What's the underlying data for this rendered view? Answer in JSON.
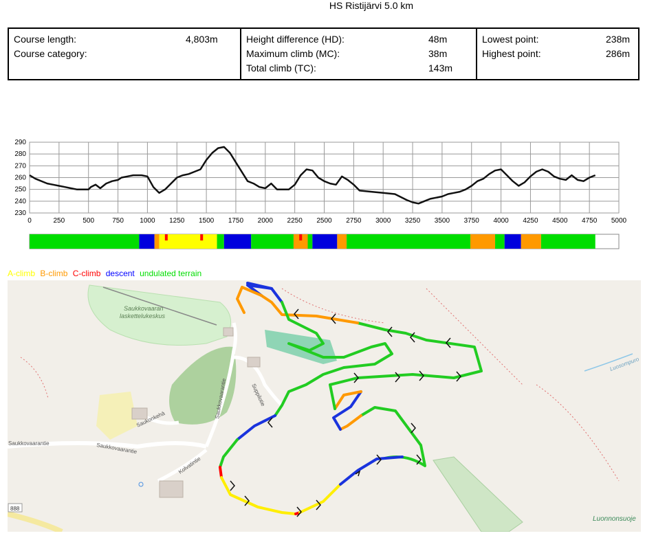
{
  "title": "HS Ristijärvi 5.0 km",
  "stats": {
    "col1": [
      {
        "label": "Course length:",
        "value": "4,803m"
      },
      {
        "label": "Course category:",
        "value": ""
      }
    ],
    "col2": [
      {
        "label": "Height difference (HD):",
        "value": "48m"
      },
      {
        "label": "Maximum climb (MC):",
        "value": "38m"
      },
      {
        "label": "Total climb (TC):",
        "value": "143m"
      }
    ],
    "col3": [
      {
        "label": "Lowest point:",
        "value": "238m"
      },
      {
        "label": "Highest point:",
        "value": "286m"
      }
    ]
  },
  "chart_data": {
    "type": "line",
    "title": "",
    "xlabel": "",
    "ylabel": "",
    "xlim": [
      0,
      5000
    ],
    "ylim": [
      230,
      290
    ],
    "xticks": [
      0,
      250,
      500,
      750,
      1000,
      1250,
      1500,
      1750,
      2000,
      2250,
      2500,
      2750,
      3000,
      3250,
      3500,
      3750,
      4000,
      4250,
      4500,
      4750,
      5000
    ],
    "yticks": [
      230,
      240,
      250,
      260,
      270,
      280,
      290
    ],
    "grid": true,
    "series": [
      {
        "name": "",
        "x": [
          0,
          50,
          150,
          200,
          250,
          300,
          350,
          400,
          500,
          520,
          560,
          600,
          650,
          700,
          750,
          780,
          830,
          880,
          950,
          1000,
          1050,
          1100,
          1150,
          1200,
          1250,
          1300,
          1350,
          1400,
          1450,
          1500,
          1550,
          1600,
          1650,
          1700,
          1750,
          1800,
          1850,
          1900,
          1950,
          2000,
          2050,
          2100,
          2150,
          2200,
          2250,
          2300,
          2350,
          2400,
          2450,
          2500,
          2550,
          2600,
          2650,
          2700,
          2750,
          2800,
          2900,
          3000,
          3100,
          3200,
          3250,
          3300,
          3350,
          3400,
          3450,
          3500,
          3550,
          3600,
          3650,
          3700,
          3750,
          3800,
          3850,
          3900,
          3950,
          4000,
          4050,
          4100,
          4150,
          4200,
          4250,
          4300,
          4350,
          4400,
          4450,
          4500,
          4550,
          4600,
          4650,
          4700,
          4750,
          4800
        ],
        "y": [
          262,
          259,
          255,
          254,
          253,
          252,
          251,
          250,
          250,
          252,
          254,
          251,
          255,
          257,
          258,
          260,
          261,
          262,
          262,
          261,
          252,
          247,
          250,
          255,
          260,
          262,
          263,
          265,
          267,
          275,
          281,
          285,
          286,
          281,
          273,
          265,
          257,
          255,
          252,
          251,
          255,
          250,
          250,
          250,
          254,
          262,
          267,
          266,
          260,
          257,
          255,
          254,
          261,
          258,
          254,
          249,
          248,
          247,
          246,
          241,
          239,
          238,
          240,
          242,
          243,
          244,
          246,
          247,
          248,
          250,
          253,
          257,
          259,
          263,
          266,
          267,
          262,
          257,
          253,
          256,
          261,
          265,
          267,
          265,
          261,
          259,
          258,
          262,
          258,
          257,
          260,
          262
        ]
      }
    ],
    "terrain_bar": [
      {
        "from": 0,
        "to": 930,
        "type": "undulated terrain"
      },
      {
        "from": 930,
        "to": 1060,
        "type": "descent"
      },
      {
        "from": 1060,
        "to": 1100,
        "type": "B-climb"
      },
      {
        "from": 1100,
        "to": 1590,
        "type": "A-climb"
      },
      {
        "from": 1590,
        "to": 1650,
        "type": "undulated terrain"
      },
      {
        "from": 1650,
        "to": 1880,
        "type": "descent"
      },
      {
        "from": 1880,
        "to": 2240,
        "type": "undulated terrain"
      },
      {
        "from": 2240,
        "to": 2360,
        "type": "B-climb"
      },
      {
        "from": 2360,
        "to": 2400,
        "type": "undulated terrain"
      },
      {
        "from": 2400,
        "to": 2610,
        "type": "descent"
      },
      {
        "from": 2610,
        "to": 2690,
        "type": "B-climb"
      },
      {
        "from": 2690,
        "to": 3740,
        "type": "undulated terrain"
      },
      {
        "from": 3740,
        "to": 3950,
        "type": "B-climb"
      },
      {
        "from": 3950,
        "to": 4030,
        "type": "undulated terrain"
      },
      {
        "from": 4030,
        "to": 4170,
        "type": "descent"
      },
      {
        "from": 4170,
        "to": 4340,
        "type": "B-climb"
      },
      {
        "from": 4340,
        "to": 4800,
        "type": "undulated terrain"
      }
    ],
    "terrain_marks": [
      {
        "x": 1160,
        "type": "C-climb"
      },
      {
        "x": 1460,
        "type": "C-climb"
      },
      {
        "x": 2300,
        "type": "C-climb"
      }
    ],
    "legend": [
      {
        "label": "A-climb",
        "color": "#ffff00"
      },
      {
        "label": "B-climb",
        "color": "#ff9900"
      },
      {
        "label": "C-climb",
        "color": "#ff0000"
      },
      {
        "label": "descent",
        "color": "#0000ff"
      },
      {
        "label": "undulated terrain",
        "color": "#00dd00"
      }
    ]
  },
  "map": {
    "labels": {
      "ski_center": [
        "Saukkovaaran",
        "laskettelukeskus"
      ],
      "road_saukkovaarantie": "Saukkovaarantie",
      "road_saukkovaarantie_left": "Saukkovaarantie",
      "road_saukonkehä": "Saukonkehä",
      "road_kolvatintie": "Kolvatintie",
      "road_suppilotie": "Suppilotie",
      "road_saukkovaarantie_v": "Saukkovaarantie",
      "road_888": "888",
      "pond_right": "Luosompuro",
      "reserve": "Luonnonsuoje"
    }
  }
}
